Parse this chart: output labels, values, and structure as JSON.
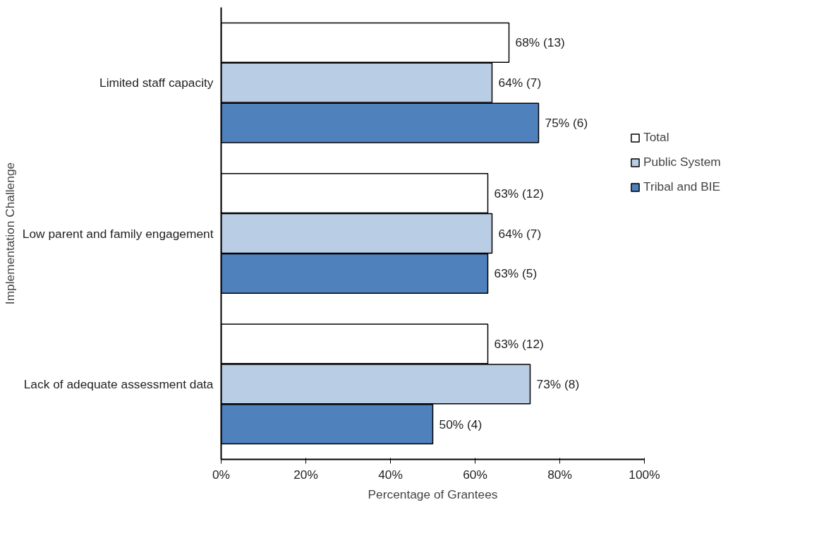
{
  "chart_data": {
    "type": "bar",
    "orientation": "horizontal",
    "xlabel": "Percentage of Grantees",
    "ylabel": "Implementation Challenge",
    "categories": [
      "Limited staff capacity",
      "Low parent and family engagement",
      "Lack of adequate assessment data"
    ],
    "series": [
      {
        "name": "Total",
        "color": "#ffffff",
        "values": [
          68,
          63,
          63
        ],
        "value_labels": [
          "68% (13)",
          "63% (12)",
          "63% (12)"
        ]
      },
      {
        "name": "Public System",
        "color": "#b9cde5",
        "values": [
          64,
          64,
          73
        ],
        "value_labels": [
          "64% (7)",
          "64% (7)",
          "73% (8)"
        ]
      },
      {
        "name": "Tribal and BIE",
        "color": "#4f81bd",
        "values": [
          75,
          63,
          50
        ],
        "value_labels": [
          "75% (6)",
          "63% (5)",
          "50% (4)"
        ]
      }
    ],
    "xlim": [
      0,
      100
    ],
    "xticks": [
      {
        "value": 0,
        "label": "0%"
      },
      {
        "value": 20,
        "label": "20%"
      },
      {
        "value": 40,
        "label": "40%"
      },
      {
        "value": 60,
        "label": "60%"
      },
      {
        "value": 80,
        "label": "80%"
      },
      {
        "value": 100,
        "label": "100%"
      }
    ],
    "legend": "right"
  }
}
